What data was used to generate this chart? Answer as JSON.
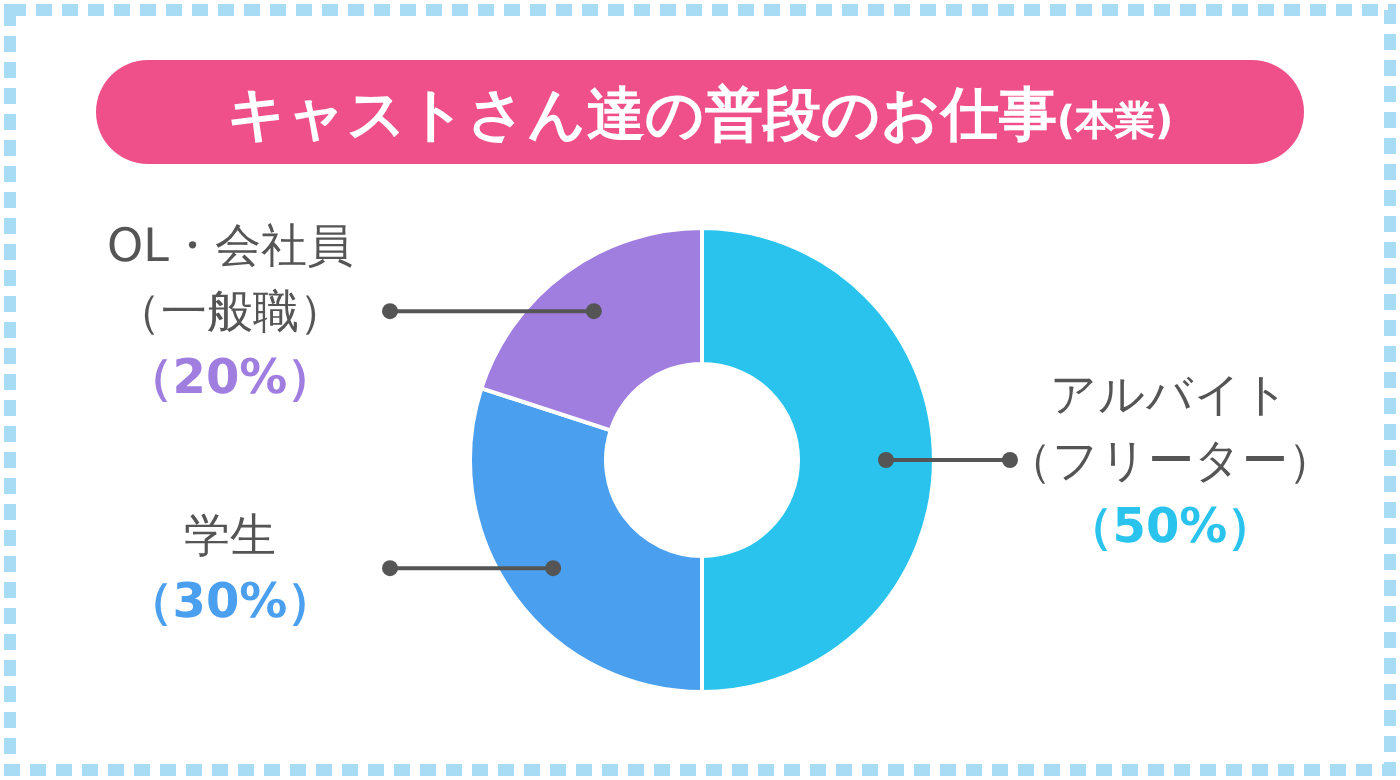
{
  "chart_data": {
    "type": "donut",
    "title": "キャストさん達の普段のお仕事(本業)",
    "categories": [
      "アルバイト（フリーター）",
      "学生",
      "OL・会社員（一般職）"
    ],
    "values": [
      50,
      30,
      20
    ],
    "colors": [
      "#29c3ee",
      "#4a9fee",
      "#a07ee0"
    ],
    "value_labels": [
      "（50%）",
      "（30%）",
      "（20%）"
    ]
  }
}
